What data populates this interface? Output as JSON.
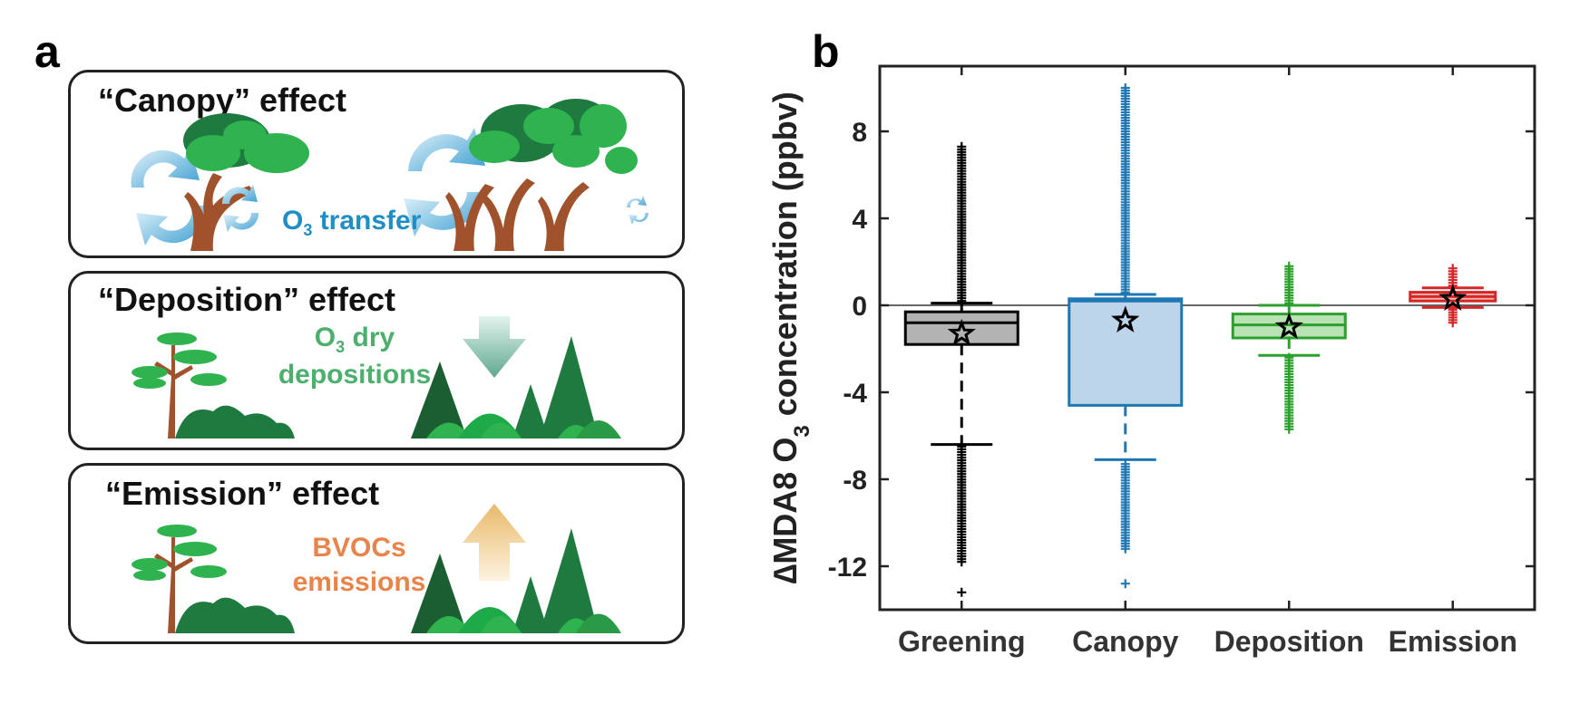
{
  "panel_a": {
    "letter": "a",
    "canopy": {
      "title": "“Canopy” effect",
      "o3": "O",
      "o3_sub": "3",
      "transfer": " transfer"
    },
    "deposition": {
      "title": "“Deposition” effect",
      "line1_o": "O",
      "line1_sub": "3",
      "line1_rest": " dry",
      "line2": "depositions"
    },
    "emission": {
      "title": "“Emission” effect",
      "line1": "BVOCs",
      "line2": "emissions"
    }
  },
  "colors": {
    "canopy_text": "#1f8ec4",
    "deposition_text": "#4caf6e",
    "emission_text": "#e8834a",
    "tree_trunk": "#a0522d",
    "foliage_dark": "#1f7a40",
    "foliage_light": "#2eb34f"
  },
  "chart_data": {
    "type": "box",
    "panel_letter": "b",
    "title": "",
    "ylabel": "∆MDA8 O3 concentration (ppbv)",
    "ylabel_parts": {
      "prefix": "∆MDA8 O",
      "sub": "3",
      "suffix": " concentration (ppbv)"
    },
    "ylim": [
      -14,
      11
    ],
    "yticks": [
      -12,
      -8,
      -4,
      0,
      4,
      8
    ],
    "ytick_labels": [
      "-12",
      "-8",
      "-4",
      "0",
      "4",
      "8"
    ],
    "zero_line": true,
    "categories": [
      "Greening",
      "Canopy",
      "Deposition",
      "Emission"
    ],
    "series": [
      {
        "name": "Greening",
        "color": "#000000",
        "fill": "#b3b3b3",
        "q1": -1.8,
        "median": -0.8,
        "q3": -0.3,
        "whisker_low": -6.4,
        "whisker_high": 0.1,
        "mean": -1.3,
        "outlier_low_range": [
          -11.8,
          -6.5
        ],
        "outlier_high_range": [
          0.2,
          7.3
        ],
        "outlier_extreme": -13.2
      },
      {
        "name": "Canopy",
        "color": "#1f77b4",
        "fill": "#bcd5ea",
        "q1": -4.6,
        "median": 0.2,
        "q3": 0.3,
        "whisker_low": -7.1,
        "whisker_high": 0.5,
        "mean": -0.7,
        "outlier_low_range": [
          -11.2,
          -7.3
        ],
        "outlier_high_range": [
          0.6,
          10.0
        ],
        "outlier_extreme": -12.8
      },
      {
        "name": "Deposition",
        "color": "#2ca02c",
        "fill": "#b9e3b4",
        "q1": -1.5,
        "median": -0.9,
        "q3": -0.4,
        "whisker_low": -2.3,
        "whisker_high": 0.0,
        "mean": -1.0,
        "outlier_low_range": [
          -5.7,
          -2.4
        ],
        "outlier_high_range": [
          0.1,
          1.8
        ],
        "outlier_extreme": null
      },
      {
        "name": "Emission",
        "color": "#d62728",
        "fill": "#f5b8b0",
        "q1": 0.2,
        "median": 0.4,
        "q3": 0.6,
        "whisker_low": -0.1,
        "whisker_high": 0.8,
        "mean": 0.3,
        "outlier_low_range": [
          -0.8,
          -0.2
        ],
        "outlier_high_range": [
          0.9,
          1.7
        ],
        "outlier_extreme": null
      }
    ]
  }
}
